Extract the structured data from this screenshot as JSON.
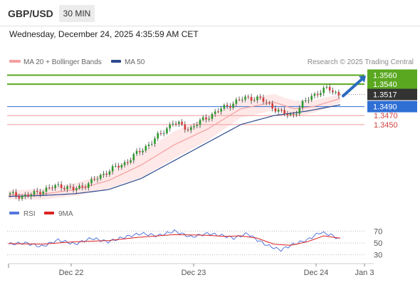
{
  "header": {
    "symbol": "GBP/USD",
    "timeframe": "30 MIN",
    "datetime": "Wednesday, December 24, 2025 4:35:59 AM CET"
  },
  "legend": {
    "ma20_label": "MA 20 + Bollinger Bands",
    "ma50_label": "MA 50",
    "rsi_label": "RSI",
    "ma9_label": "9MA"
  },
  "credit": "Research © 2025 Trading Central",
  "colors": {
    "resistance": "#5aa820",
    "support": "#f29a9a",
    "pivot": "#2f6fd4",
    "ma20": "#f4a0a0",
    "bands_fill": "#fde0e0",
    "ma50": "#2c4a8e",
    "candle_up": "#2d9a2d",
    "candle_down": "#d43a3a",
    "rsi": "#5577dd",
    "ma9": "#dd2222",
    "current": "#333333",
    "arrow": "#2a6bbf"
  },
  "chart_data": [
    {
      "type": "candlestick",
      "title": "",
      "x_ticks": [
        "Dec 22",
        "Dec 23",
        "Dec 24",
        "Jan 3"
      ],
      "ylim": [
        1.328,
        1.3575
      ],
      "levels": [
        {
          "value": 1.356,
          "label": "1.3560",
          "kind": "resistance"
        },
        {
          "value": 1.354,
          "label": "1.3540",
          "kind": "resistance"
        },
        {
          "value": 1.3517,
          "label": "1.3517",
          "kind": "current"
        },
        {
          "value": 1.349,
          "label": "1.3490",
          "kind": "pivot"
        },
        {
          "value": 1.347,
          "label": "1.3470",
          "kind": "support"
        },
        {
          "value": 1.345,
          "label": "1.3450",
          "kind": "support"
        }
      ],
      "price_path": {
        "t": [
          0,
          0.06,
          0.1,
          0.16,
          0.2,
          0.25,
          0.3,
          0.35,
          0.4,
          0.45,
          0.5,
          0.55,
          0.6,
          0.63,
          0.66,
          0.7,
          0.73,
          0.76,
          0.8,
          0.83,
          0.86,
          0.89,
          0.92,
          0.95,
          0.97,
          1.0
        ],
        "close": [
          1.3295,
          1.329,
          1.3302,
          1.3315,
          1.3305,
          1.332,
          1.3345,
          1.3362,
          1.339,
          1.342,
          1.3455,
          1.344,
          1.3465,
          1.3478,
          1.349,
          1.3505,
          1.351,
          1.3508,
          1.349,
          1.3475,
          1.347,
          1.3495,
          1.3515,
          1.3525,
          1.353,
          1.3517
        ]
      },
      "ma20": {
        "t": [
          0,
          0.1,
          0.2,
          0.3,
          0.4,
          0.5,
          0.6,
          0.7,
          0.8,
          0.86,
          0.92,
          1.0
        ],
        "values": [
          1.3293,
          1.3295,
          1.3305,
          1.3325,
          1.336,
          1.3405,
          1.344,
          1.3485,
          1.35,
          1.3485,
          1.349,
          1.3508
        ]
      },
      "bollinger_width": {
        "t": [
          0,
          0.1,
          0.2,
          0.3,
          0.4,
          0.5,
          0.6,
          0.7,
          0.8,
          0.86,
          0.92,
          1.0
        ],
        "values": [
          0.001,
          0.0012,
          0.0014,
          0.0018,
          0.0028,
          0.003,
          0.0026,
          0.002,
          0.0018,
          0.0018,
          0.0014,
          0.001
        ]
      },
      "ma50": {
        "t": [
          0,
          0.1,
          0.2,
          0.3,
          0.4,
          0.5,
          0.6,
          0.7,
          0.8,
          0.9,
          1.0
        ],
        "values": [
          1.329,
          1.3292,
          1.3296,
          1.3305,
          1.333,
          1.337,
          1.341,
          1.345,
          1.347,
          1.348,
          1.3494
        ]
      },
      "forecast_arrow": {
        "from": 1.3517,
        "to": 1.356
      }
    },
    {
      "type": "line",
      "title": "",
      "ylim": [
        20,
        80
      ],
      "y_ticks": [
        70,
        50,
        30
      ],
      "dotted_levels": [
        70,
        50,
        30
      ],
      "series": [
        {
          "name": "RSI",
          "t": [
            0,
            0.05,
            0.1,
            0.15,
            0.2,
            0.25,
            0.3,
            0.35,
            0.4,
            0.45,
            0.5,
            0.55,
            0.6,
            0.65,
            0.68,
            0.72,
            0.75,
            0.78,
            0.82,
            0.86,
            0.9,
            0.94,
            0.97,
            1.0
          ],
          "values": [
            48,
            50,
            44,
            55,
            48,
            58,
            52,
            60,
            66,
            62,
            70,
            60,
            66,
            62,
            58,
            66,
            55,
            46,
            38,
            48,
            55,
            68,
            64,
            56
          ]
        },
        {
          "name": "9MA",
          "t": [
            0,
            0.1,
            0.2,
            0.3,
            0.4,
            0.5,
            0.6,
            0.65,
            0.7,
            0.75,
            0.8,
            0.85,
            0.9,
            0.95,
            1.0
          ],
          "values": [
            49,
            48,
            52,
            54,
            60,
            64,
            63,
            61,
            62,
            58,
            48,
            46,
            52,
            62,
            58
          ]
        }
      ]
    }
  ]
}
